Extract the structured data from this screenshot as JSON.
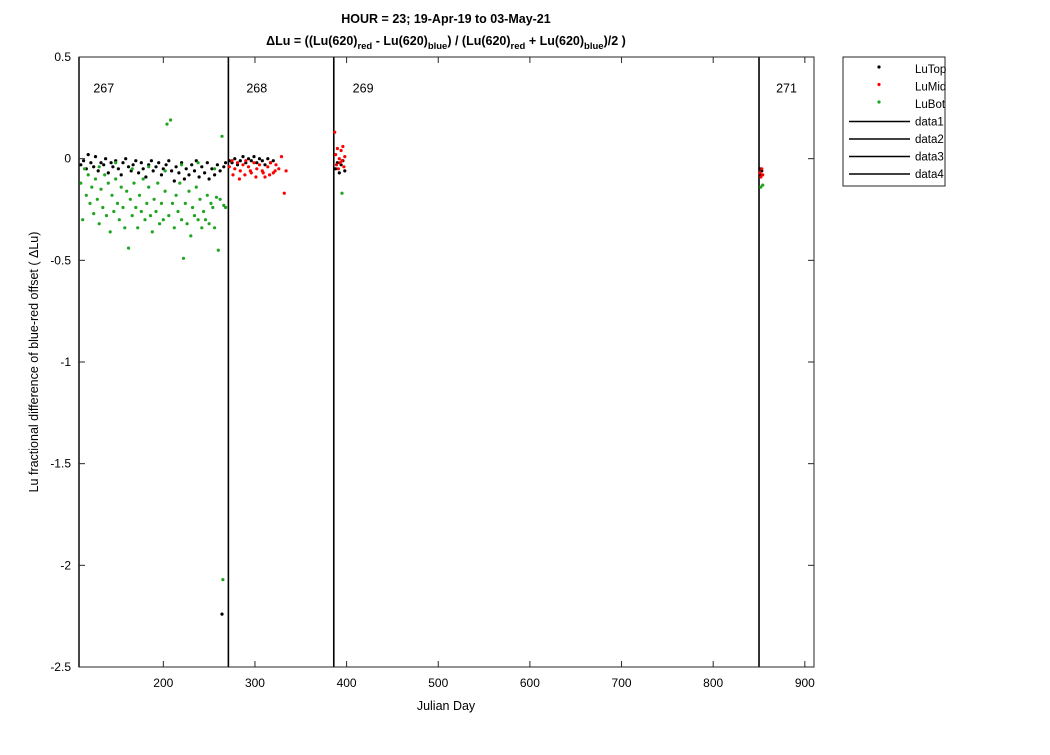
{
  "chart_data": {
    "type": "scatter",
    "title": "HOUR = 23; 19-Apr-19 to 03-May-21",
    "subtitle": {
      "parts": [
        {
          "t": "ΔLu = ((Lu(620)",
          "s": "n"
        },
        {
          "t": "red",
          "s": "sub"
        },
        {
          "t": " - Lu(620)",
          "s": "n"
        },
        {
          "t": "blue",
          "s": "sub"
        },
        {
          "t": ") / (Lu(620)",
          "s": "n"
        },
        {
          "t": "red",
          "s": "sub"
        },
        {
          "t": " + Lu(620)",
          "s": "n"
        },
        {
          "t": "blue",
          "s": "sub"
        },
        {
          "t": ")/2  )",
          "s": "n"
        }
      ]
    },
    "xlabel": "Julian Day",
    "ylabel": "Lu fractional difference of blue-red offset (  ΔLu)",
    "xlim": [
      108,
      910
    ],
    "ylim": [
      -2.5,
      0.5
    ],
    "xticks": [
      200,
      300,
      400,
      500,
      600,
      700,
      800,
      900
    ],
    "yticks": [
      0.5,
      0,
      -0.5,
      -1,
      -1.5,
      -2,
      -2.5
    ],
    "ytick_labels": [
      "0.5",
      "0",
      "-0.5",
      "-1",
      "-1.5",
      "-2",
      "-2.5"
    ],
    "grid": false,
    "legend_position": "outside-top-right",
    "deployment_lines": [
      {
        "name": "data1",
        "x": 271
      },
      {
        "name": "data2",
        "x": 386
      },
      {
        "name": "data3",
        "x": 850
      },
      {
        "name": "data4",
        "x": 108
      }
    ],
    "deployment_labels": [
      {
        "text": "267",
        "x": 135
      },
      {
        "text": "268",
        "x": 302
      },
      {
        "text": "269",
        "x": 418
      },
      {
        "text": "271",
        "x": 880
      }
    ],
    "deployment_label_y": 0.35,
    "series": [
      {
        "name": "LuTop",
        "color": "#000000",
        "points": [
          [
            110,
            -0.03
          ],
          [
            113,
            -0.01
          ],
          [
            116,
            -0.05
          ],
          [
            118,
            0.02
          ],
          [
            121,
            -0.02
          ],
          [
            124,
            -0.04
          ],
          [
            126,
            0.01
          ],
          [
            129,
            -0.06
          ],
          [
            132,
            -0.02
          ],
          [
            135,
            -0.03
          ],
          [
            137,
            0.0
          ],
          [
            140,
            -0.07
          ],
          [
            143,
            -0.02
          ],
          [
            145,
            -0.04
          ],
          [
            148,
            -0.01
          ],
          [
            151,
            -0.05
          ],
          [
            154,
            -0.08
          ],
          [
            156,
            -0.02
          ],
          [
            159,
            0.0
          ],
          [
            162,
            -0.04
          ],
          [
            165,
            -0.06
          ],
          [
            167,
            -0.03
          ],
          [
            170,
            -0.01
          ],
          [
            173,
            -0.07
          ],
          [
            176,
            -0.02
          ],
          [
            178,
            -0.05
          ],
          [
            181,
            -0.09
          ],
          [
            184,
            -0.03
          ],
          [
            187,
            -0.01
          ],
          [
            189,
            -0.06
          ],
          [
            192,
            -0.04
          ],
          [
            195,
            -0.02
          ],
          [
            198,
            -0.08
          ],
          [
            200,
            -0.05
          ],
          [
            203,
            -0.03
          ],
          [
            206,
            -0.01
          ],
          [
            209,
            -0.06
          ],
          [
            212,
            -0.11
          ],
          [
            214,
            -0.04
          ],
          [
            217,
            -0.07
          ],
          [
            220,
            -0.02
          ],
          [
            223,
            -0.1
          ],
          [
            225,
            -0.05
          ],
          [
            228,
            -0.08
          ],
          [
            231,
            -0.03
          ],
          [
            234,
            -0.06
          ],
          [
            236,
            -0.01
          ],
          [
            239,
            -0.09
          ],
          [
            242,
            -0.04
          ],
          [
            245,
            -0.07
          ],
          [
            248,
            -0.02
          ],
          [
            250,
            -0.1
          ],
          [
            253,
            -0.05
          ],
          [
            256,
            -0.08
          ],
          [
            259,
            -0.03
          ],
          [
            262,
            -0.06
          ],
          [
            264,
            -2.24
          ],
          [
            266,
            -0.04
          ],
          [
            268,
            -0.02
          ],
          [
            272,
            -0.01
          ],
          [
            275,
            -0.02
          ],
          [
            278,
            0.0
          ],
          [
            281,
            -0.03
          ],
          [
            284,
            -0.01
          ],
          [
            287,
            0.01
          ],
          [
            290,
            -0.02
          ],
          [
            293,
            0.0
          ],
          [
            296,
            -0.01
          ],
          [
            299,
            0.01
          ],
          [
            302,
            -0.02
          ],
          [
            305,
            0.0
          ],
          [
            308,
            -0.01
          ],
          [
            311,
            -0.03
          ],
          [
            314,
            0.0
          ],
          [
            317,
            -0.02
          ],
          [
            320,
            -0.01
          ],
          [
            388,
            -0.05
          ],
          [
            390,
            -0.02
          ],
          [
            392,
            -0.07
          ],
          [
            394,
            -0.03
          ],
          [
            396,
            -0.01
          ],
          [
            398,
            -0.06
          ],
          [
            851,
            -0.05
          ],
          [
            852,
            -0.08
          ],
          [
            853,
            -0.06
          ]
        ]
      },
      {
        "name": "LuMid",
        "color": "#ff0000",
        "points": [
          [
            272,
            -0.04
          ],
          [
            275,
            -0.01
          ],
          [
            278,
            -0.05
          ],
          [
            281,
            -0.02
          ],
          [
            284,
            -0.06
          ],
          [
            287,
            -0.03
          ],
          [
            290,
            -0.01
          ],
          [
            293,
            -0.04
          ],
          [
            296,
            -0.07
          ],
          [
            299,
            -0.02
          ],
          [
            302,
            -0.05
          ],
          [
            305,
            -0.03
          ],
          [
            308,
            -0.06
          ],
          [
            311,
            -0.09
          ],
          [
            314,
            -0.04
          ],
          [
            317,
            -0.02
          ],
          [
            320,
            -0.07
          ],
          [
            323,
            -0.03
          ],
          [
            326,
            -0.05
          ],
          [
            329,
            0.01
          ],
          [
            332,
            -0.17
          ],
          [
            334,
            -0.06
          ],
          [
            276,
            -0.08
          ],
          [
            283,
            -0.1
          ],
          [
            289,
            -0.08
          ],
          [
            295,
            -0.06
          ],
          [
            301,
            -0.09
          ],
          [
            309,
            -0.07
          ],
          [
            316,
            -0.08
          ],
          [
            322,
            -0.06
          ],
          [
            387,
            0.13
          ],
          [
            388,
            0.02
          ],
          [
            389,
            -0.03
          ],
          [
            390,
            0.05
          ],
          [
            391,
            -0.05
          ],
          [
            392,
            0.0
          ],
          [
            393,
            -0.02
          ],
          [
            394,
            0.04
          ],
          [
            395,
            -0.01
          ],
          [
            396,
            0.06
          ],
          [
            397,
            -0.04
          ],
          [
            398,
            0.01
          ],
          [
            851,
            -0.07
          ],
          [
            852,
            -0.09
          ],
          [
            853,
            -0.05
          ],
          [
            854,
            -0.08
          ]
        ]
      },
      {
        "name": "LuBot",
        "color": "#1fa51f",
        "points": [
          [
            110,
            -0.12
          ],
          [
            112,
            -0.3
          ],
          [
            114,
            -0.05
          ],
          [
            116,
            -0.18
          ],
          [
            118,
            -0.08
          ],
          [
            120,
            -0.22
          ],
          [
            122,
            -0.14
          ],
          [
            124,
            -0.27
          ],
          [
            126,
            -0.1
          ],
          [
            128,
            -0.2
          ],
          [
            130,
            -0.32
          ],
          [
            132,
            -0.15
          ],
          [
            134,
            -0.24
          ],
          [
            136,
            -0.08
          ],
          [
            138,
            -0.28
          ],
          [
            140,
            -0.12
          ],
          [
            142,
            -0.36
          ],
          [
            144,
            -0.18
          ],
          [
            146,
            -0.26
          ],
          [
            148,
            -0.1
          ],
          [
            150,
            -0.22
          ],
          [
            152,
            -0.3
          ],
          [
            154,
            -0.14
          ],
          [
            156,
            -0.24
          ],
          [
            158,
            -0.34
          ],
          [
            160,
            -0.16
          ],
          [
            162,
            -0.44
          ],
          [
            164,
            -0.2
          ],
          [
            166,
            -0.28
          ],
          [
            168,
            -0.12
          ],
          [
            170,
            -0.24
          ],
          [
            172,
            -0.34
          ],
          [
            174,
            -0.18
          ],
          [
            176,
            -0.26
          ],
          [
            178,
            -0.1
          ],
          [
            180,
            -0.3
          ],
          [
            182,
            -0.22
          ],
          [
            184,
            -0.14
          ],
          [
            186,
            -0.28
          ],
          [
            188,
            -0.36
          ],
          [
            190,
            -0.2
          ],
          [
            192,
            -0.26
          ],
          [
            194,
            -0.12
          ],
          [
            196,
            -0.32
          ],
          [
            198,
            -0.22
          ],
          [
            200,
            -0.3
          ],
          [
            202,
            -0.16
          ],
          [
            204,
            0.17
          ],
          [
            206,
            -0.28
          ],
          [
            208,
            0.19
          ],
          [
            210,
            -0.22
          ],
          [
            212,
            -0.34
          ],
          [
            214,
            -0.18
          ],
          [
            216,
            -0.26
          ],
          [
            218,
            -0.12
          ],
          [
            220,
            -0.3
          ],
          [
            222,
            -0.49
          ],
          [
            224,
            -0.22
          ],
          [
            226,
            -0.32
          ],
          [
            228,
            -0.16
          ],
          [
            230,
            -0.38
          ],
          [
            232,
            -0.24
          ],
          [
            234,
            -0.28
          ],
          [
            236,
            -0.14
          ],
          [
            238,
            -0.3
          ],
          [
            240,
            -0.2
          ],
          [
            242,
            -0.34
          ],
          [
            244,
            -0.26
          ],
          [
            246,
            -0.3
          ],
          [
            248,
            -0.18
          ],
          [
            250,
            -0.32
          ],
          [
            252,
            -0.22
          ],
          [
            254,
            -0.24
          ],
          [
            256,
            -0.34
          ],
          [
            258,
            -0.19
          ],
          [
            260,
            -0.45
          ],
          [
            262,
            -0.2
          ],
          [
            264,
            0.11
          ],
          [
            265,
            -2.07
          ],
          [
            266,
            -0.23
          ],
          [
            268,
            -0.24
          ],
          [
            130,
            -0.04
          ],
          [
            148,
            -0.02
          ],
          [
            166,
            -0.05
          ],
          [
            184,
            -0.04
          ],
          [
            202,
            -0.06
          ],
          [
            220,
            -0.03
          ],
          [
            238,
            -0.02
          ],
          [
            256,
            -0.05
          ],
          [
            395,
            -0.17
          ],
          [
            852,
            -0.14
          ],
          [
            854,
            -0.13
          ]
        ]
      }
    ]
  },
  "legend": {
    "entries": [
      {
        "label": "LuTop",
        "kind": "marker",
        "color": "#000000"
      },
      {
        "label": "LuMid",
        "kind": "marker",
        "color": "#ff0000"
      },
      {
        "label": "LuBot",
        "kind": "marker",
        "color": "#1fa51f"
      },
      {
        "label": "data1",
        "kind": "line",
        "color": "#000000"
      },
      {
        "label": "data2",
        "kind": "line",
        "color": "#000000"
      },
      {
        "label": "data3",
        "kind": "line",
        "color": "#000000"
      },
      {
        "label": "data4",
        "kind": "line",
        "color": "#000000"
      }
    ]
  }
}
